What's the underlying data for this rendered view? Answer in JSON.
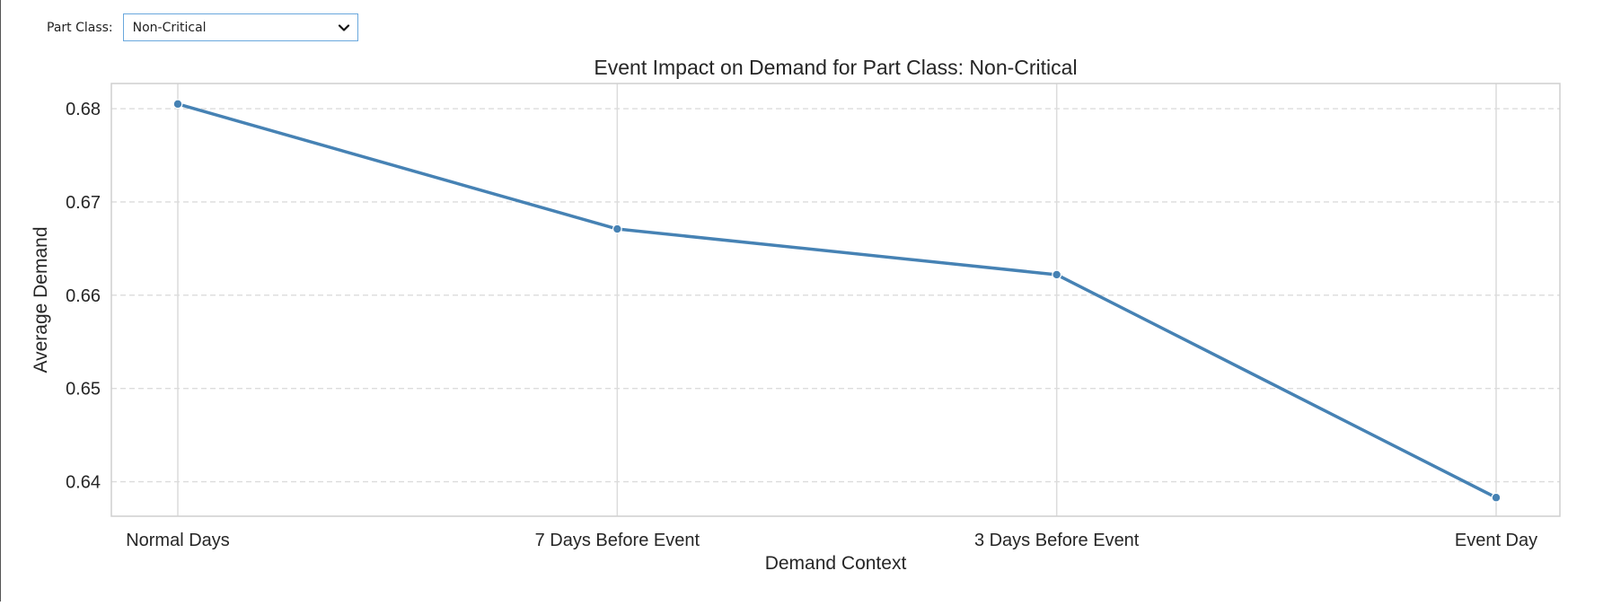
{
  "controls": {
    "part_class_label": "Part Class:",
    "part_class_value": "Non-Critical",
    "dropdown_icon": "chevron-down-icon"
  },
  "chart_data": {
    "type": "line",
    "title": "Event Impact on Demand for Part Class: Non-Critical",
    "xlabel": "Demand Context",
    "ylabel": "Average Demand",
    "categories": [
      "Normal Days",
      "7 Days Before Event",
      "3 Days Before Event",
      "Event Day"
    ],
    "series": [
      {
        "values": [
          0.6805,
          0.6671,
          0.6622,
          0.6383
        ]
      }
    ],
    "yticks": [
      0.64,
      0.65,
      0.66,
      0.67,
      0.68
    ],
    "ytick_labels": [
      "0.64",
      "0.65",
      "0.66",
      "0.67",
      "0.68"
    ],
    "ylim": [
      0.6363,
      0.6827
    ],
    "grid": true,
    "colors": {
      "line": "#4682b4",
      "grid": "#dcdcdc",
      "frame": "#cfcfcf"
    }
  }
}
